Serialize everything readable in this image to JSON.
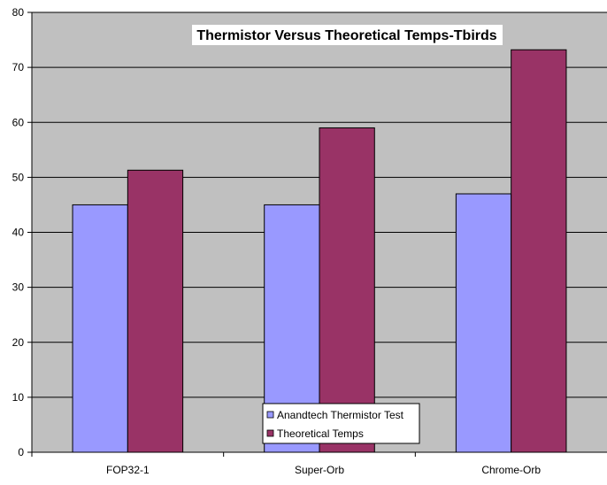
{
  "chart_data": {
    "type": "bar",
    "title": "Thermistor Versus Theoretical Temps-Tbirds",
    "xlabel": "",
    "ylabel": "",
    "categories": [
      "FOP32-1",
      "Super-Orb",
      "Chrome-Orb"
    ],
    "series": [
      {
        "name": "Anandtech Thermistor Test",
        "values": [
          45,
          45,
          47
        ],
        "color": "#9999ff"
      },
      {
        "name": "Theoretical Temps",
        "values": [
          51.3,
          59,
          73.2
        ],
        "color": "#993366"
      }
    ],
    "ylim": [
      0,
      80
    ],
    "yticks": [
      "0",
      "10",
      "20",
      "30",
      "40",
      "50",
      "60",
      "70",
      "80"
    ],
    "grid": true,
    "legend_position": "bottom-center",
    "plot_background": "#c0c0c0"
  }
}
